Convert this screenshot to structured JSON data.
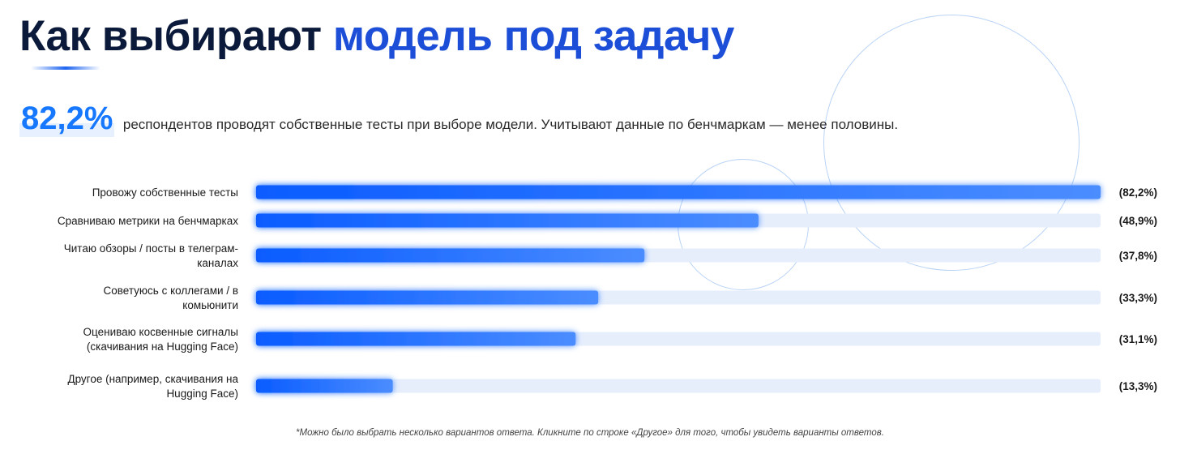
{
  "header": {
    "title_part1": "Как выбирают",
    "title_part2": "модель под задачу"
  },
  "lead": {
    "stat": "82,2%",
    "text": "респондентов проводят собственные тесты при выборе модели. Учитывают данные по бенчмаркам — менее половины."
  },
  "colors": {
    "title_dark": "#0b1a3a",
    "title_accent": "#1d4ed8",
    "bar": "#1a6cff",
    "track": "#e6eefc",
    "stat": "#1677ff"
  },
  "chart_data": {
    "type": "bar",
    "orientation": "horizontal",
    "categories": [
      [
        "Провожу собственные тесты"
      ],
      [
        "Сравниваю метрики на бенчмарках"
      ],
      [
        "Читаю обзоры / посты в телеграм-",
        "каналах"
      ],
      [
        "Советуюсь с коллегами / в",
        "комьюнити"
      ],
      [
        "Оцениваю косвенные сигналы",
        "(скачивания на Hugging Face)"
      ],
      [
        "Другое (например, скачивания на",
        "Hugging Face)"
      ]
    ],
    "values": [
      82.2,
      48.9,
      37.8,
      33.3,
      31.1,
      13.3
    ],
    "value_labels": [
      "(82,2%)",
      "(48,9%)",
      "(37,8%)",
      "(33,3%)",
      "(31,1%)",
      "(13,3%)"
    ],
    "unit": "%",
    "xlim": [
      0,
      82.2
    ],
    "grid": false
  },
  "footnote": "*Можно было выбрать несколько вариантов ответа. Кликните по строке «Другое» для того, чтобы увидеть варианты ответов."
}
